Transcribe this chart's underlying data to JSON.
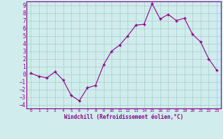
{
  "x": [
    0,
    1,
    2,
    3,
    4,
    5,
    6,
    7,
    8,
    9,
    10,
    11,
    12,
    13,
    14,
    15,
    16,
    17,
    18,
    19,
    20,
    21,
    22,
    23
  ],
  "y": [
    0.1,
    -0.3,
    -0.5,
    0.3,
    -0.8,
    -2.8,
    -3.5,
    -1.8,
    -1.5,
    1.2,
    3.0,
    3.8,
    5.0,
    6.4,
    6.5,
    9.2,
    7.2,
    7.8,
    7.0,
    7.3,
    5.2,
    4.2,
    2.0,
    0.5
  ],
  "xlim": [
    -0.5,
    23.5
  ],
  "ylim": [
    -4.5,
    9.5
  ],
  "yticks": [
    -4,
    -3,
    -2,
    -1,
    0,
    1,
    2,
    3,
    4,
    5,
    6,
    7,
    8,
    9
  ],
  "xticks": [
    0,
    1,
    2,
    3,
    4,
    5,
    6,
    7,
    8,
    9,
    10,
    11,
    12,
    13,
    14,
    15,
    16,
    17,
    18,
    19,
    20,
    21,
    22,
    23
  ],
  "xlabel": "Windchill (Refroidissement éolien,°C)",
  "line_color": "#880088",
  "marker_color": "#880088",
  "bg_color": "#d0ecec",
  "grid_color": "#aacccc",
  "axis_color": "#880088",
  "tick_label_color": "#880088",
  "xlabel_color": "#880088"
}
